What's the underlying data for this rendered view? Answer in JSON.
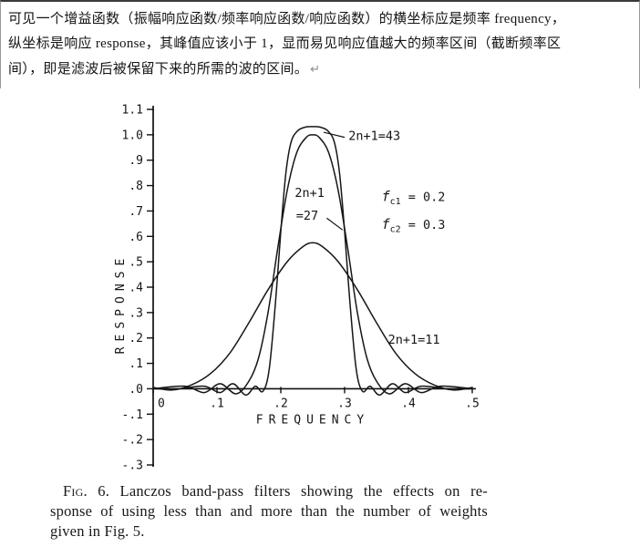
{
  "paragraph": {
    "lines": [
      "可见一个增益函数（振幅响应函数/频率响应函数/响应函数）的横坐标应是频率 frequency，",
      "纵坐标是响应 response，其峰值应该小于 1，显而易见响应值越大的频率区间（截断频率区",
      "间），即是滤波后被保留下来的所需的波的区间。"
    ],
    "return_mark": "↵"
  },
  "chart_data": {
    "type": "line",
    "title": "",
    "xlabel": "FREQUENCY",
    "ylabel": "RESPONSE",
    "xlim": [
      0,
      0.5
    ],
    "ylim": [
      -0.3,
      1.1
    ],
    "grid": false,
    "legend_position": "none",
    "params": {
      "fc1": 0.2,
      "fc2": 0.3
    },
    "xticks": [
      {
        "v": 0,
        "label": "0"
      },
      {
        "v": 0.1,
        "label": ".1"
      },
      {
        "v": 0.2,
        "label": ".2"
      },
      {
        "v": 0.3,
        "label": ".3"
      },
      {
        "v": 0.4,
        "label": ".4"
      },
      {
        "v": 0.5,
        "label": ".5"
      }
    ],
    "yticks": [
      {
        "v": 1.1,
        "label": "1.1"
      },
      {
        "v": 1.0,
        "label": "1.0"
      },
      {
        "v": 0.9,
        "label": ".9"
      },
      {
        "v": 0.8,
        "label": ".8"
      },
      {
        "v": 0.7,
        "label": ".7"
      },
      {
        "v": 0.6,
        "label": ".6"
      },
      {
        "v": 0.5,
        "label": ".5"
      },
      {
        "v": 0.4,
        "label": ".4"
      },
      {
        "v": 0.3,
        "label": ".3"
      },
      {
        "v": 0.2,
        "label": ".2"
      },
      {
        "v": 0.1,
        "label": ".1"
      },
      {
        "v": 0.0,
        "label": ".0"
      },
      {
        "v": -0.1,
        "label": "-.1"
      },
      {
        "v": -0.2,
        "label": "-.2"
      },
      {
        "v": -0.3,
        "label": "-.3"
      }
    ],
    "series": [
      {
        "name": "2n+1=43",
        "points": [
          [
            0.0,
            0.0
          ],
          [
            0.04,
            0.0
          ],
          [
            0.08,
            0.01
          ],
          [
            0.105,
            -0.015
          ],
          [
            0.125,
            0.02
          ],
          [
            0.145,
            -0.025
          ],
          [
            0.16,
            0.01
          ],
          [
            0.172,
            -0.01
          ],
          [
            0.182,
            0.08
          ],
          [
            0.192,
            0.35
          ],
          [
            0.2,
            0.62
          ],
          [
            0.208,
            0.85
          ],
          [
            0.216,
            0.97
          ],
          [
            0.226,
            1.015
          ],
          [
            0.238,
            1.03
          ],
          [
            0.25,
            1.032
          ],
          [
            0.262,
            1.03
          ],
          [
            0.274,
            1.015
          ],
          [
            0.284,
            0.97
          ],
          [
            0.292,
            0.85
          ],
          [
            0.3,
            0.62
          ],
          [
            0.308,
            0.35
          ],
          [
            0.318,
            0.08
          ],
          [
            0.328,
            -0.01
          ],
          [
            0.34,
            0.01
          ],
          [
            0.355,
            -0.025
          ],
          [
            0.375,
            0.02
          ],
          [
            0.395,
            -0.015
          ],
          [
            0.42,
            0.01
          ],
          [
            0.46,
            0.0
          ],
          [
            0.5,
            0.0
          ]
        ]
      },
      {
        "name": "2n+1=27",
        "points": [
          [
            0.0,
            0.0
          ],
          [
            0.05,
            0.01
          ],
          [
            0.08,
            -0.015
          ],
          [
            0.105,
            0.02
          ],
          [
            0.13,
            -0.02
          ],
          [
            0.15,
            0.03
          ],
          [
            0.165,
            0.12
          ],
          [
            0.18,
            0.3
          ],
          [
            0.195,
            0.55
          ],
          [
            0.21,
            0.78
          ],
          [
            0.225,
            0.93
          ],
          [
            0.24,
            0.99
          ],
          [
            0.25,
            1.0
          ],
          [
            0.26,
            0.99
          ],
          [
            0.275,
            0.93
          ],
          [
            0.29,
            0.78
          ],
          [
            0.305,
            0.55
          ],
          [
            0.32,
            0.3
          ],
          [
            0.335,
            0.12
          ],
          [
            0.35,
            0.03
          ],
          [
            0.37,
            -0.02
          ],
          [
            0.395,
            0.02
          ],
          [
            0.42,
            -0.015
          ],
          [
            0.45,
            0.01
          ],
          [
            0.5,
            0.0
          ]
        ]
      },
      {
        "name": "2n+1=11",
        "points": [
          [
            0.0,
            0.005
          ],
          [
            0.03,
            -0.005
          ],
          [
            0.06,
            0.015
          ],
          [
            0.09,
            0.06
          ],
          [
            0.12,
            0.14
          ],
          [
            0.15,
            0.26
          ],
          [
            0.18,
            0.39
          ],
          [
            0.21,
            0.5
          ],
          [
            0.235,
            0.56
          ],
          [
            0.25,
            0.575
          ],
          [
            0.265,
            0.56
          ],
          [
            0.29,
            0.5
          ],
          [
            0.32,
            0.39
          ],
          [
            0.35,
            0.26
          ],
          [
            0.38,
            0.14
          ],
          [
            0.41,
            0.06
          ],
          [
            0.44,
            0.015
          ],
          [
            0.47,
            -0.005
          ],
          [
            0.5,
            0.005
          ]
        ]
      }
    ],
    "annotations": [
      {
        "id": "curve-label-43",
        "text": "2n+1=43",
        "f": 0.306,
        "r": 0.98,
        "leader": {
          "x1": 0.3,
          "y1": 0.99,
          "x2": 0.267,
          "y2": 1.01
        }
      },
      {
        "id": "curve-label-27-line1",
        "text": "2n+1",
        "f": 0.222,
        "r": 0.755
      },
      {
        "id": "curve-label-27-line2",
        "text": "=27",
        "f": 0.224,
        "r": 0.665,
        "leader": {
          "x1": 0.272,
          "y1": 0.672,
          "x2": 0.297,
          "y2": 0.625
        }
      },
      {
        "id": "fc1-label",
        "prefix": "f",
        "sub": "c1",
        "rest": "= 0.2",
        "f": 0.358,
        "r": 0.74
      },
      {
        "id": "fc2-label",
        "prefix": "f",
        "sub": "c2",
        "rest": "= 0.3",
        "f": 0.358,
        "r": 0.63
      },
      {
        "id": "curve-label-11",
        "text": "2n+1=11",
        "f": 0.368,
        "r": 0.178
      }
    ]
  },
  "caption": {
    "fig_label": "Fig. 6.",
    "line1_rest": " Lanczos band-pass filters showing the effects on re-",
    "line2": "sponse of using less than and more than the number of weights",
    "line3": "given in Fig. 5."
  }
}
